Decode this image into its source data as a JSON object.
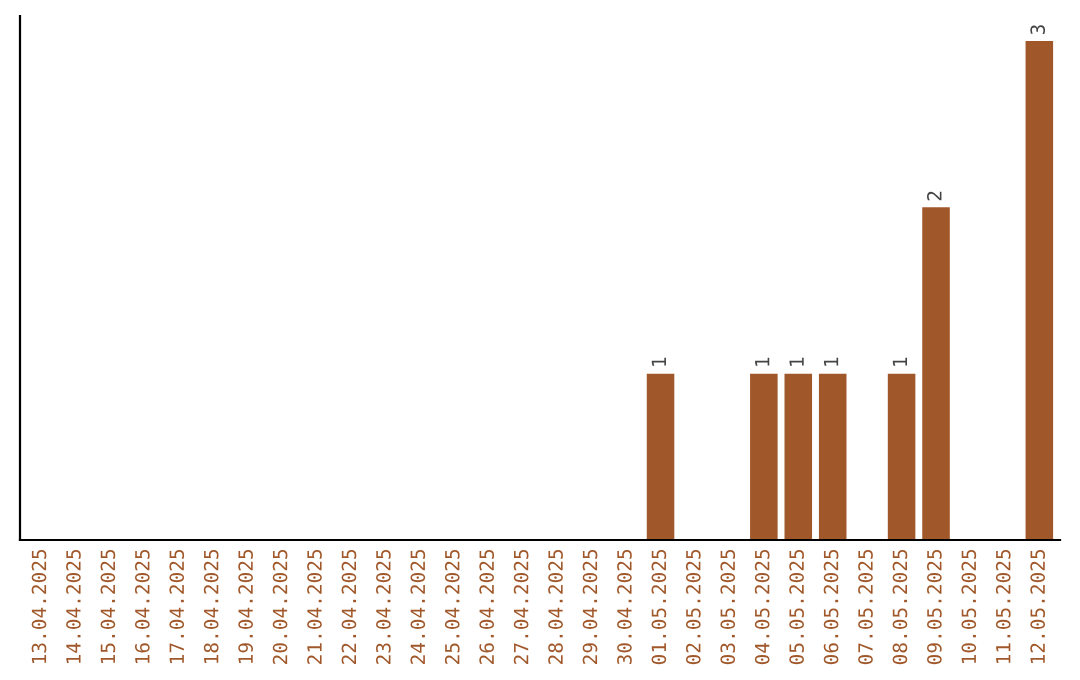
{
  "chart_data": {
    "type": "bar",
    "categories": [
      "13.04.2025",
      "14.04.2025",
      "15.04.2025",
      "16.04.2025",
      "17.04.2025",
      "18.04.2025",
      "19.04.2025",
      "20.04.2025",
      "21.04.2025",
      "22.04.2025",
      "23.04.2025",
      "24.04.2025",
      "25.04.2025",
      "26.04.2025",
      "27.04.2025",
      "28.04.2025",
      "29.04.2025",
      "30.04.2025",
      "01.05.2025",
      "02.05.2025",
      "03.05.2025",
      "04.05.2025",
      "05.05.2025",
      "06.05.2025",
      "07.05.2025",
      "08.05.2025",
      "09.05.2025",
      "10.05.2025",
      "11.05.2025",
      "12.05.2025"
    ],
    "values": [
      null,
      null,
      null,
      null,
      null,
      null,
      null,
      null,
      null,
      null,
      null,
      null,
      null,
      null,
      null,
      null,
      null,
      null,
      1,
      null,
      null,
      1,
      1,
      1,
      null,
      1,
      2,
      null,
      null,
      3
    ],
    "data_labels": true,
    "color": "#a0582a",
    "ylim": [
      0,
      3.15
    ],
    "tick_labels": "x",
    "grid": false,
    "legend": false
  }
}
